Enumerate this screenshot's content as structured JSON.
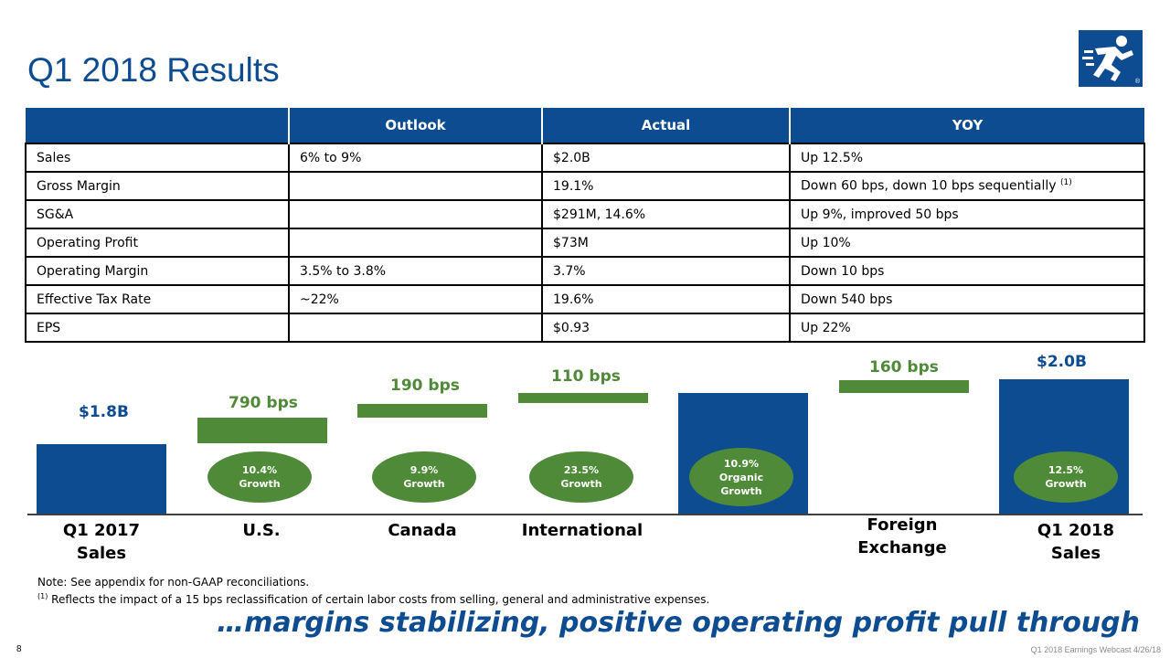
{
  "header": {
    "title": "Q1 2018 Results"
  },
  "logo": {
    "icon": "runner-logo-icon",
    "reg_mark": "®"
  },
  "table": {
    "columns": [
      "",
      "Outlook",
      "Actual",
      "YOY"
    ],
    "rows": [
      {
        "metric": "Sales",
        "outlook": "6% to 9%",
        "actual": "$2.0B",
        "yoy": "Up 12.5%",
        "yoy_note": ""
      },
      {
        "metric": "Gross Margin",
        "outlook": "",
        "actual": "19.1%",
        "yoy": "Down 60 bps, down 10 bps sequentially",
        "yoy_note": "(1)"
      },
      {
        "metric": "SG&A",
        "outlook": "",
        "actual": "$291M, 14.6%",
        "yoy": "Up 9%, improved 50 bps",
        "yoy_note": ""
      },
      {
        "metric": "Operating Profit",
        "outlook": "",
        "actual": "$73M",
        "yoy": "Up 10%",
        "yoy_note": ""
      },
      {
        "metric": "Operating Margin",
        "outlook": "3.5% to 3.8%",
        "actual": "3.7%",
        "yoy": "Down 10 bps",
        "yoy_note": ""
      },
      {
        "metric": "Effective Tax Rate",
        "outlook": "~22%",
        "actual": "19.6%",
        "yoy": "Down 540 bps",
        "yoy_note": ""
      },
      {
        "metric": "EPS",
        "outlook": "",
        "actual": "$0.93",
        "yoy": "Up 22%",
        "yoy_note": ""
      }
    ]
  },
  "chart_data": {
    "type": "bar",
    "subtype": "waterfall",
    "categories": [
      "Q1 2017 Sales",
      "U.S.",
      "Canada",
      "International",
      "",
      "Foreign Exchange",
      "Q1 2018 Sales"
    ],
    "labels": [
      "$1.8B",
      "790 bps",
      "190 bps",
      "110 bps",
      "",
      "160 bps",
      "$2.0B"
    ],
    "growth_bubbles": [
      {
        "category": "U.S.",
        "value": "10.4%",
        "text": "Growth"
      },
      {
        "category": "Canada",
        "value": "9.9%",
        "text": "Growth"
      },
      {
        "category": "International",
        "value": "23.5%",
        "text": "Growth"
      },
      {
        "category": "",
        "value": "10.9%",
        "text": "Organic Growth"
      },
      {
        "category": "Q1 2018 Sales",
        "value": "12.5%",
        "text": "Growth"
      }
    ],
    "colors": {
      "total": "#0e4c92",
      "increment": "#4e8a37"
    }
  },
  "notes": {
    "note": "Note: See appendix for non-GAAP reconciliations.",
    "footnote_mark": "(1)",
    "footnote": " Reflects the impact of a 15 bps reclassification of certain labor costs from selling, general and administrative expenses."
  },
  "tagline": "…margins stabilizing, positive operating profit pull through",
  "footer": {
    "page": "8",
    "text": "Q1 2018 Earnings Webcast 4/26/18"
  }
}
